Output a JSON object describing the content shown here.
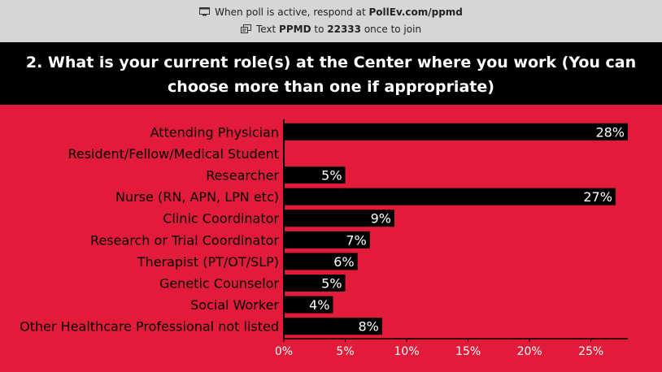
{
  "header": {
    "line1_prefix": "When poll is active, respond at",
    "line1_link": "PollEv.com/ppmd",
    "line2_prefix": "Text",
    "line2_code": "PPMD",
    "line2_mid": "to",
    "line2_number": "22333",
    "line2_suffix": "once to join",
    "icons": [
      "browser-icon",
      "phone-text-icon"
    ]
  },
  "question": {
    "title": "2. What is your current role(s) at the Center where you work (You can choose more than one if appropriate)"
  },
  "colors": {
    "background": "#e31b3a",
    "bar": "#000000",
    "header_bg": "#d6d6d6",
    "title_bg": "#000000"
  },
  "chart_data": {
    "type": "bar",
    "orientation": "horizontal",
    "categories": [
      "Attending Physician",
      "Resident/Fellow/Medical Student",
      "Researcher",
      "Nurse (RN, APN, LPN etc)",
      "Clinic Coordinator",
      "Research or Trial Coordinator",
      "Therapist (PT/OT/SLP)",
      "Genetic Counselor",
      "Social Worker",
      "Other Healthcare Professional not listed"
    ],
    "values": [
      28,
      0,
      5,
      27,
      9,
      7,
      6,
      5,
      4,
      8
    ],
    "value_labels": [
      "28%",
      "",
      "5%",
      "27%",
      "9%",
      "7%",
      "6%",
      "5%",
      "4%",
      "8%"
    ],
    "xlim": [
      0,
      28
    ],
    "xticks": [
      0,
      5,
      10,
      15,
      20,
      25
    ],
    "xtick_labels": [
      "0%",
      "5%",
      "10%",
      "15%",
      "20%",
      "25%"
    ],
    "grid": false
  }
}
